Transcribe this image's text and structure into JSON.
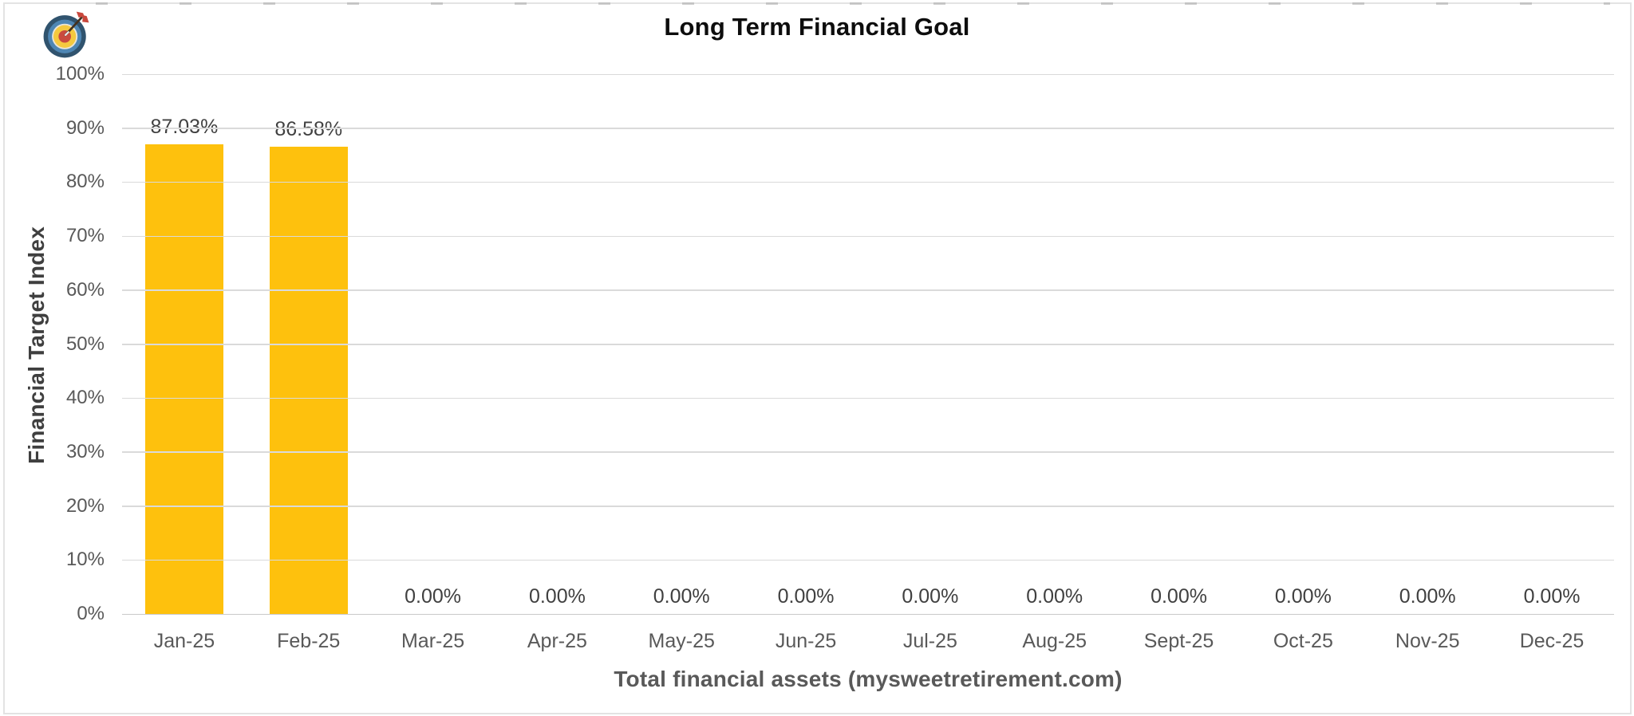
{
  "chart_data": {
    "type": "bar",
    "title": "Long Term Financial Goal",
    "xlabel": "Total financial assets (mysweetretirement.com)",
    "ylabel": "Financial Target Index",
    "categories": [
      "Jan-25",
      "Feb-25",
      "Mar-25",
      "Apr-25",
      "May-25",
      "Jun-25",
      "Jul-25",
      "Aug-25",
      "Sept-25",
      "Oct-25",
      "Nov-25",
      "Dec-25"
    ],
    "values": [
      87.03,
      86.58,
      0,
      0,
      0,
      0,
      0,
      0,
      0,
      0,
      0,
      0
    ],
    "data_labels": [
      "87.03%",
      "86.58%",
      "0.00%",
      "0.00%",
      "0.00%",
      "0.00%",
      "0.00%",
      "0.00%",
      "0.00%",
      "0.00%",
      "0.00%",
      "0.00%"
    ],
    "y_ticks": [
      "0%",
      "10%",
      "20%",
      "30%",
      "40%",
      "50%",
      "60%",
      "70%",
      "80%",
      "90%",
      "100%"
    ],
    "ylim": [
      0,
      100
    ],
    "grid": true,
    "legend": "none",
    "bar_color": "#FEC10D",
    "gridline_color": "#DADADA",
    "axis_text_color": "#595959",
    "data_label_color": "#404040",
    "title_color": "#0D0D0D"
  },
  "icon": {
    "name": "target-dartboard-icon"
  }
}
